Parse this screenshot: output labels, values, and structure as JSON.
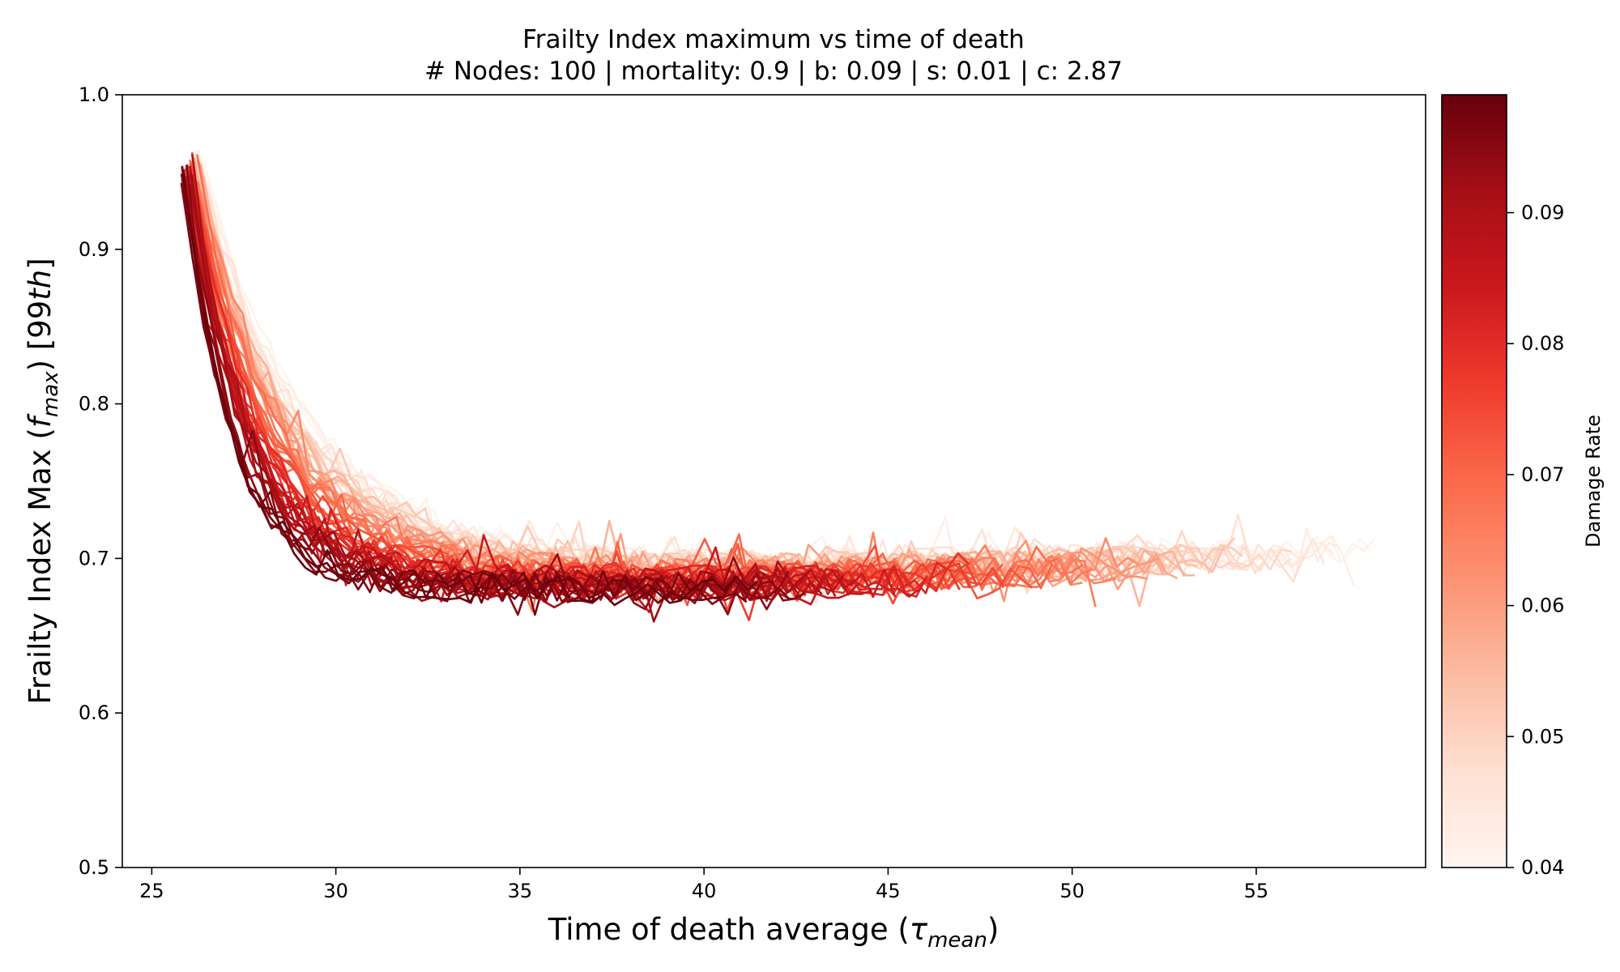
{
  "chart_data": {
    "type": "line",
    "title": "Frailty Index maximum vs time of death",
    "subtitle": "# Nodes: 100 | mortality: 0.9 | b: 0.09 | s: 0.01 | c: 2.87",
    "xlabel_main": "Time of death average (",
    "xlabel_symbol": "τ",
    "xlabel_sub": "mean",
    "xlabel_close": ")",
    "ylabel_main": "Frailty Index Max (",
    "ylabel_symbol": "f",
    "ylabel_sub": "max",
    "ylabel_close": ") [99",
    "ylabel_italic": "th",
    "ylabel_end": "]",
    "xlim": [
      24.2,
      59.6
    ],
    "ylim": [
      0.5,
      1.0
    ],
    "x_ticks": [
      "25",
      "30",
      "35",
      "40",
      "45",
      "50",
      "55"
    ],
    "y_ticks": [
      "0.5",
      "0.6",
      "0.7",
      "0.8",
      "0.9",
      "1.0"
    ],
    "colorbar": {
      "label": "Damage Rate",
      "range": [
        0.04,
        0.099
      ],
      "ticks": [
        "0.04",
        "0.05",
        "0.06",
        "0.07",
        "0.08",
        "0.09"
      ],
      "colormap": "Reds",
      "low_color": "#fff5f0",
      "high_color": "#67000d"
    },
    "series_model": {
      "count": 60,
      "damage_rate_range": [
        0.04,
        0.099
      ],
      "start": {
        "x": 25.9,
        "y": 0.96
      },
      "plateau_y": 0.68,
      "plateau_y_low_rate": 0.7,
      "end_x_high_rate": 41.0,
      "end_x_low_rate": 58.0,
      "noise": 0.008
    }
  }
}
